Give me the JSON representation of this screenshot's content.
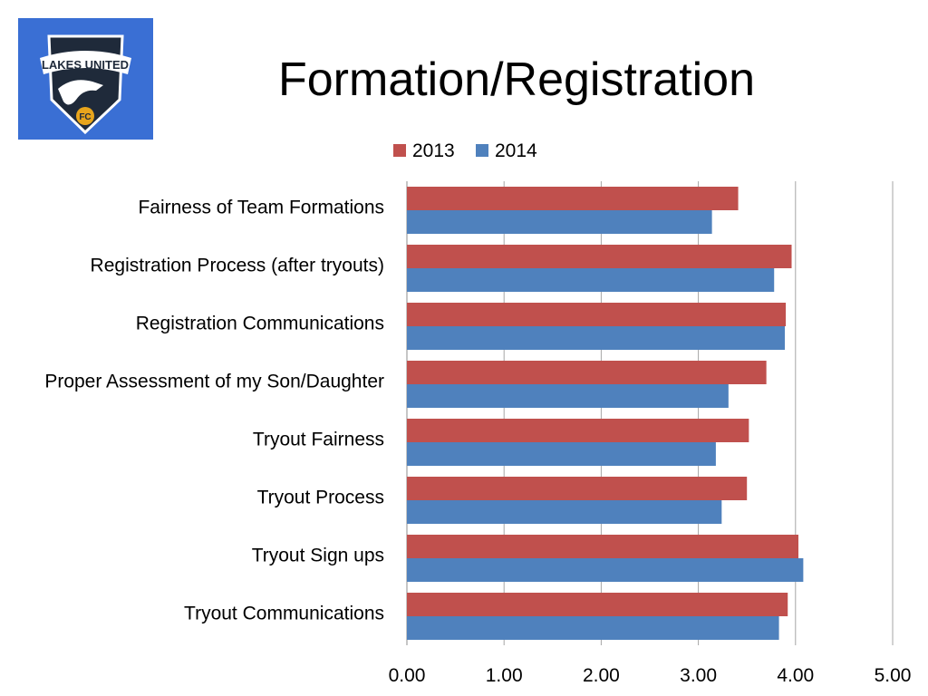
{
  "logo": {
    "text_top": "LAKES UNITED",
    "text_badge": "FC",
    "colors": {
      "background": "#3a6fd4",
      "shield": "#1f2a3a",
      "band": "#ffffff",
      "accent": "#e8a51c"
    }
  },
  "title": "Formation/Registration",
  "chart_data": {
    "type": "bar",
    "orientation": "horizontal",
    "title": "Formation/Registration",
    "categories": [
      "Fairness of Team Formations",
      "Registration Process (after tryouts)",
      "Registration Communications",
      "Proper Assessment of my Son/Daughter",
      "Tryout Fairness",
      "Tryout Process",
      "Tryout Sign ups",
      "Tryout Communications"
    ],
    "series": [
      {
        "name": "2013",
        "color": "#c0504d",
        "values": [
          3.41,
          3.96,
          3.9,
          3.7,
          3.52,
          3.5,
          4.03,
          3.92
        ]
      },
      {
        "name": "2014",
        "color": "#4f81bd",
        "values": [
          3.14,
          3.78,
          3.89,
          3.31,
          3.18,
          3.24,
          4.08,
          3.83
        ]
      }
    ],
    "xlim": [
      0,
      5
    ],
    "xticks": [
      "0.00",
      "1.00",
      "2.00",
      "3.00",
      "4.00",
      "5.00"
    ],
    "grid": true,
    "legend_position": "top"
  }
}
